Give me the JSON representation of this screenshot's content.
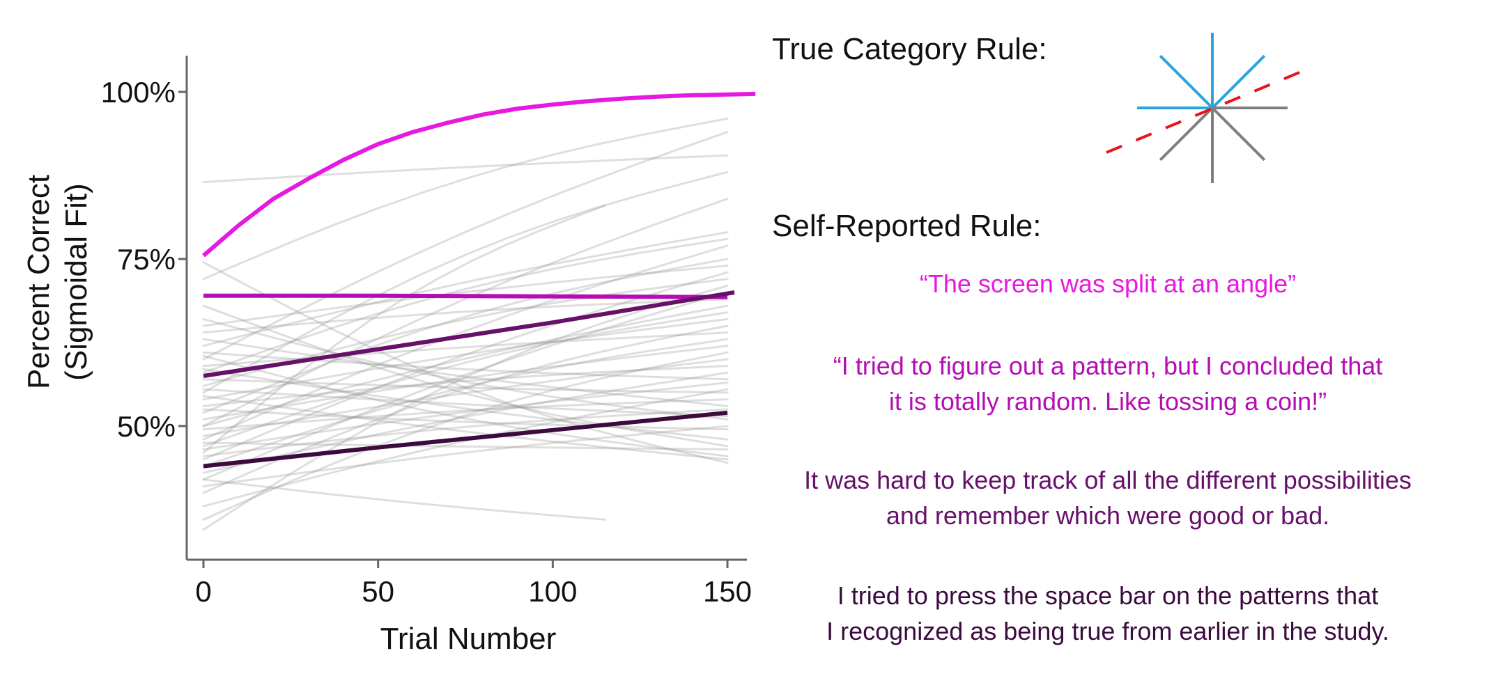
{
  "chart_data": {
    "type": "line",
    "xlabel": "Trial Number",
    "ylabel_line1": "Percent Correct",
    "ylabel_line2": "(Sigmoidal Fit)",
    "xlim": [
      -5,
      155
    ],
    "ylim": [
      30,
      105
    ],
    "x_ticks": [
      0,
      50,
      100,
      150
    ],
    "x_tick_labels": [
      "0",
      "50",
      "100",
      "150"
    ],
    "y_ticks": [
      50,
      75,
      100
    ],
    "y_tick_labels": [
      "50%",
      "75%",
      "100%"
    ],
    "grid": false,
    "legend": "none",
    "highlighted_series": [
      {
        "color": "#e619e0",
        "width": 6,
        "x": [
          0,
          10,
          20,
          30,
          40,
          50,
          60,
          70,
          80,
          90,
          100,
          110,
          120,
          130,
          140,
          150,
          158
        ],
        "y": [
          75.5,
          80.0,
          84.0,
          87.0,
          89.8,
          92.2,
          94.0,
          95.4,
          96.6,
          97.5,
          98.1,
          98.6,
          99.0,
          99.3,
          99.5,
          99.6,
          99.7
        ]
      },
      {
        "color": "#b40db4",
        "width": 6,
        "x": [
          0,
          50,
          100,
          150
        ],
        "y": [
          69.5,
          69.5,
          69.4,
          69.3
        ]
      },
      {
        "color": "#66106a",
        "width": 6,
        "x": [
          0,
          50,
          100,
          152
        ],
        "y": [
          57.5,
          61.5,
          65.5,
          70.0
        ]
      },
      {
        "color": "#3b0a3e",
        "width": 6,
        "x": [
          0,
          50,
          100,
          150
        ],
        "y": [
          44.0,
          46.8,
          49.4,
          52.0
        ]
      }
    ],
    "background_series": [
      {
        "x": [
          0,
          150
        ],
        "y": [
          86.5,
          90.5
        ]
      },
      {
        "x": [
          0,
          150
        ],
        "y": [
          72.0,
          96.0
        ]
      },
      {
        "x": [
          0,
          150
        ],
        "y": [
          60.0,
          94.0
        ]
      },
      {
        "x": [
          0,
          150
        ],
        "y": [
          55.0,
          88.0
        ]
      },
      {
        "x": [
          0,
          150
        ],
        "y": [
          50.0,
          84.0
        ]
      },
      {
        "x": [
          0,
          115
        ],
        "y": [
          46.0,
          83.0
        ]
      },
      {
        "x": [
          0,
          150
        ],
        "y": [
          62.0,
          79.0
        ]
      },
      {
        "x": [
          0,
          150
        ],
        "y": [
          58.0,
          78.0
        ]
      },
      {
        "x": [
          0,
          150
        ],
        "y": [
          48.0,
          77.0
        ]
      },
      {
        "x": [
          0,
          150
        ],
        "y": [
          52.0,
          75.0
        ]
      },
      {
        "x": [
          0,
          150
        ],
        "y": [
          45.0,
          73.0
        ]
      },
      {
        "x": [
          0,
          150
        ],
        "y": [
          56.0,
          72.0
        ]
      },
      {
        "x": [
          0,
          150
        ],
        "y": [
          42.0,
          70.0
        ]
      },
      {
        "x": [
          0,
          150
        ],
        "y": [
          64.0,
          69.0
        ]
      },
      {
        "x": [
          0,
          150
        ],
        "y": [
          50.0,
          68.0
        ]
      },
      {
        "x": [
          0,
          150
        ],
        "y": [
          47.0,
          67.0
        ]
      },
      {
        "x": [
          0,
          150
        ],
        "y": [
          54.0,
          66.0
        ]
      },
      {
        "x": [
          0,
          150
        ],
        "y": [
          40.0,
          65.0
        ]
      },
      {
        "x": [
          0,
          150
        ],
        "y": [
          59.0,
          64.0
        ]
      },
      {
        "x": [
          0,
          150
        ],
        "y": [
          44.0,
          63.0
        ]
      },
      {
        "x": [
          0,
          150
        ],
        "y": [
          51.0,
          62.0
        ]
      },
      {
        "x": [
          0,
          150
        ],
        "y": [
          36.0,
          61.0
        ]
      },
      {
        "x": [
          0,
          150
        ],
        "y": [
          48.5,
          60.0
        ]
      },
      {
        "x": [
          0,
          150
        ],
        "y": [
          53.0,
          59.0
        ]
      },
      {
        "x": [
          0,
          150
        ],
        "y": [
          43.0,
          58.0
        ]
      },
      {
        "x": [
          0,
          150
        ],
        "y": [
          61.0,
          57.0
        ]
      },
      {
        "x": [
          0,
          150
        ],
        "y": [
          46.5,
          56.5
        ]
      },
      {
        "x": [
          0,
          150
        ],
        "y": [
          57.0,
          55.0
        ]
      },
      {
        "x": [
          0,
          150
        ],
        "y": [
          38.0,
          55.5
        ]
      },
      {
        "x": [
          0,
          150
        ],
        "y": [
          49.5,
          54.0
        ]
      },
      {
        "x": [
          0,
          150
        ],
        "y": [
          63.0,
          53.0
        ]
      },
      {
        "x": [
          0,
          150
        ],
        "y": [
          45.5,
          52.5
        ]
      },
      {
        "x": [
          0,
          150
        ],
        "y": [
          55.5,
          51.5
        ]
      },
      {
        "x": [
          0,
          150
        ],
        "y": [
          66.0,
          51.0
        ]
      },
      {
        "x": [
          0,
          150
        ],
        "y": [
          41.0,
          50.0
        ]
      },
      {
        "x": [
          0,
          150
        ],
        "y": [
          52.5,
          49.5
        ]
      },
      {
        "x": [
          0,
          150
        ],
        "y": [
          58.5,
          48.0
        ]
      },
      {
        "x": [
          0,
          150
        ],
        "y": [
          68.0,
          47.0
        ]
      },
      {
        "x": [
          0,
          150
        ],
        "y": [
          47.5,
          46.5
        ]
      },
      {
        "x": [
          0,
          150
        ],
        "y": [
          60.5,
          45.5
        ]
      },
      {
        "x": [
          0,
          150
        ],
        "y": [
          54.5,
          45.0
        ]
      },
      {
        "x": [
          0,
          150
        ],
        "y": [
          74.5,
          44.5
        ]
      },
      {
        "x": [
          0,
          115
        ],
        "y": [
          42.0,
          36.0
        ]
      },
      {
        "x": [
          0,
          150
        ],
        "y": [
          34.5,
          71.0
        ]
      },
      {
        "x": [
          0,
          150
        ],
        "y": [
          65.0,
          74.0
        ]
      }
    ]
  },
  "rule_panel": {
    "true_rule_heading": "True Category Rule:",
    "self_reported_heading": "Self-Reported Rule:",
    "rule_icon_colors": {
      "blue": "#2aa3e0",
      "gray": "#7f7f7f",
      "red": "#e8141c"
    }
  },
  "quotes": [
    {
      "text": "“The screen was split at an angle”",
      "color": "#e619e0"
    },
    {
      "text": "“I tried to figure out a pattern, but I concluded that\nit is totally random. Like tossing a coin!”",
      "color": "#b40db4"
    },
    {
      "text": "It was hard to keep track of all the different possibilities\nand remember which were good or bad.",
      "color": "#66106a"
    },
    {
      "text": "I tried to press the space bar on the patterns that\nI recognized as being true from earlier in the study.",
      "color": "#3b0a3e"
    }
  ]
}
